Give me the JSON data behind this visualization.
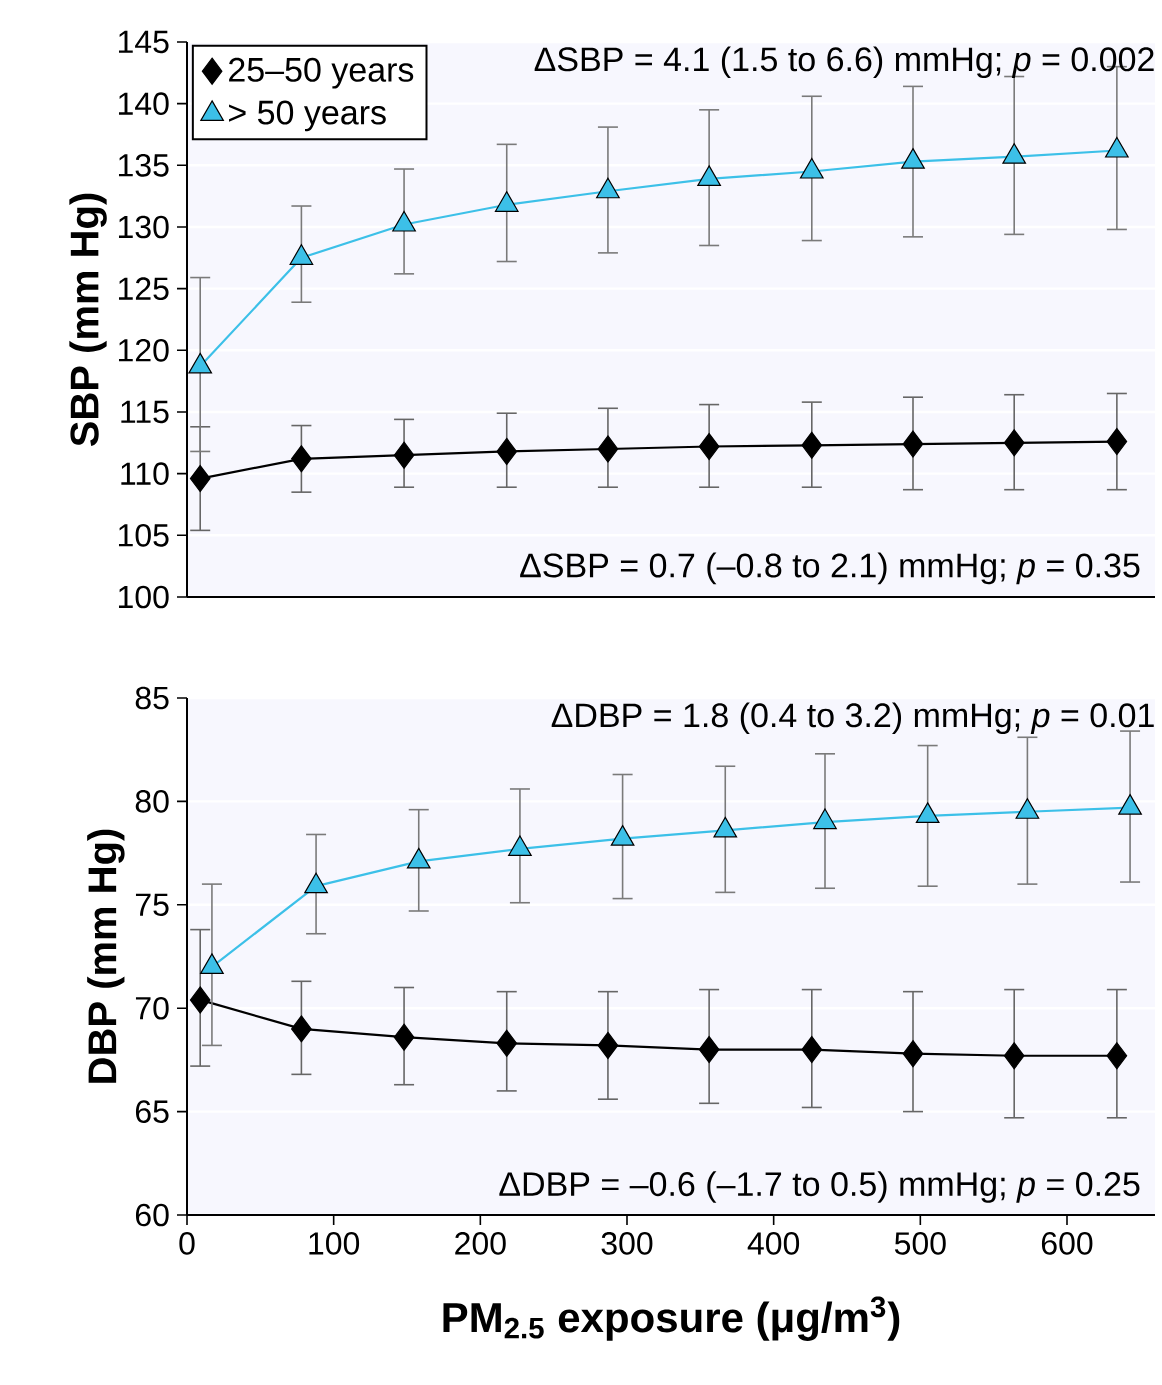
{
  "chart_data": [
    {
      "type": "line",
      "ylabel": "SBP (mm Hg)",
      "xlim": [
        0,
        660
      ],
      "ylim": [
        100,
        145
      ],
      "yticks": [
        100,
        105,
        110,
        115,
        120,
        125,
        130,
        135,
        140,
        145
      ],
      "tick_labels": "y",
      "grid": "y",
      "legend": "top left",
      "annotations": [
        "ΔSBP = 4.1 (1.5 to 6.6) mmHg; *p* = 0.002",
        "ΔSBP = 0.7 (–0.8 to 2.1) mmHg; *p* = 0.35"
      ],
      "series": [
        {
          "name": "25–50 years",
          "color": "#000000",
          "marker": "diamond",
          "x": [
            9,
            78,
            148,
            218,
            287,
            356,
            426,
            495,
            564,
            634
          ],
          "values": [
            109.6,
            111.2,
            111.5,
            111.8,
            112.0,
            112.2,
            112.3,
            112.4,
            112.5,
            112.6
          ],
          "errors": [
            [
              105.4,
              113.8
            ],
            [
              108.5,
              113.9
            ],
            [
              108.9,
              114.4
            ],
            [
              108.9,
              114.9
            ],
            [
              108.9,
              115.3
            ],
            [
              108.9,
              115.6
            ],
            [
              108.9,
              115.8
            ],
            [
              108.7,
              116.2
            ],
            [
              108.7,
              116.4
            ],
            [
              108.7,
              116.5
            ]
          ]
        },
        {
          "name": "> 50 years",
          "color": "#3cc0e8",
          "marker": "triangle",
          "x": [
            9,
            78,
            148,
            218,
            287,
            356,
            426,
            495,
            564,
            634
          ],
          "values": [
            118.7,
            127.5,
            130.2,
            131.8,
            132.9,
            133.9,
            134.5,
            135.3,
            135.7,
            136.2
          ],
          "errors": [
            [
              111.8,
              125.9
            ],
            [
              123.9,
              131.7
            ],
            [
              126.2,
              134.7
            ],
            [
              127.2,
              136.7
            ],
            [
              127.9,
              138.1
            ],
            [
              128.5,
              139.5
            ],
            [
              128.9,
              140.6
            ],
            [
              129.2,
              141.4
            ],
            [
              129.4,
              142.2
            ],
            [
              129.8,
              143.0
            ]
          ]
        }
      ]
    },
    {
      "type": "line",
      "ylabel": "DBP (mm Hg)",
      "xlabel": "PM$_{2.5}$ exposure (μg/m$^{3}$)",
      "xlim": [
        0,
        660
      ],
      "xticks": [
        0,
        100,
        200,
        300,
        400,
        500,
        600
      ],
      "ylim": [
        60,
        85
      ],
      "yticks": [
        60,
        65,
        70,
        75,
        80,
        85
      ],
      "grid": "y",
      "annotations": [
        "ΔDBP = 1.8 (0.4 to 3.2) mmHg; *p* = 0.01",
        "ΔDBP = –0.6 (–1.7 to 0.5) mmHg; *p* = 0.25"
      ],
      "series": [
        {
          "color": "#000000",
          "marker": "diamond",
          "x": [
            9,
            78,
            148,
            218,
            287,
            356,
            426,
            495,
            564,
            634
          ],
          "values": [
            70.4,
            69.0,
            68.6,
            68.3,
            68.2,
            68.0,
            68.0,
            67.8,
            67.7,
            67.7
          ],
          "errors": [
            [
              67.2,
              73.8
            ],
            [
              66.8,
              71.3
            ],
            [
              66.3,
              71.0
            ],
            [
              66.0,
              70.8
            ],
            [
              65.6,
              70.8
            ],
            [
              65.4,
              70.9
            ],
            [
              65.2,
              70.9
            ],
            [
              65.0,
              70.8
            ],
            [
              64.7,
              70.9
            ],
            [
              64.7,
              70.9
            ]
          ]
        },
        {
          "color": "#3cc0e8",
          "marker": "triangle",
          "x": [
            17,
            88,
            158,
            227,
            297,
            367,
            435,
            505,
            573,
            643
          ],
          "values": [
            72.0,
            75.9,
            77.1,
            77.7,
            78.2,
            78.6,
            79.0,
            79.3,
            79.5,
            79.7
          ],
          "errors": [
            [
              68.2,
              76.0
            ],
            [
              73.6,
              78.4
            ],
            [
              74.7,
              79.6
            ],
            [
              75.1,
              80.6
            ],
            [
              75.3,
              81.3
            ],
            [
              75.6,
              81.7
            ],
            [
              75.8,
              82.3
            ],
            [
              75.9,
              82.7
            ],
            [
              76.0,
              83.1
            ],
            [
              76.1,
              83.4
            ]
          ]
        }
      ]
    }
  ]
}
